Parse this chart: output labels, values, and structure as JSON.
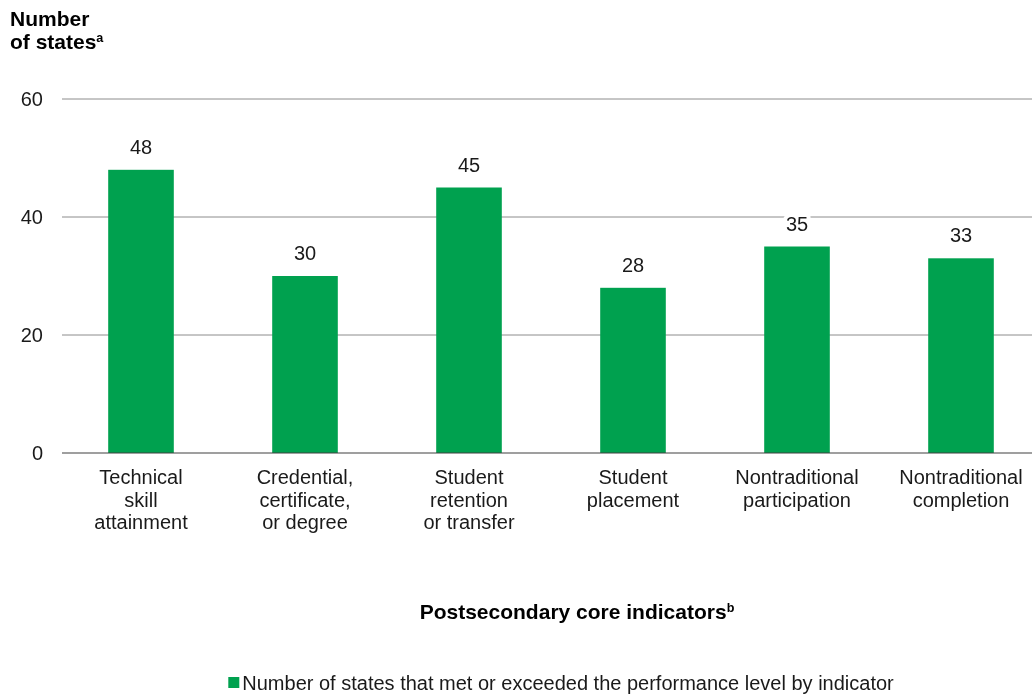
{
  "chart_data": {
    "type": "bar",
    "categories": [
      "Technical skill attainment",
      "Credential, certificate, or degree",
      "Student retention or transfer",
      "Student placement",
      "Nontraditional participation",
      "Nontraditional completion"
    ],
    "series": [
      {
        "name": "Number of states that met or exceeded the performance level by indicator",
        "color": "#00a14f",
        "values": [
          48,
          30,
          45,
          28,
          35,
          33
        ]
      }
    ],
    "ylabel": "Number of states$^{a}$",
    "xlabel": "Postsecondary core indicators$^{b}$",
    "ylim": [
      0,
      60
    ],
    "yticks": [
      0,
      20,
      40,
      60
    ],
    "grid": "y",
    "legend": "bottom",
    "data_labels": true
  }
}
